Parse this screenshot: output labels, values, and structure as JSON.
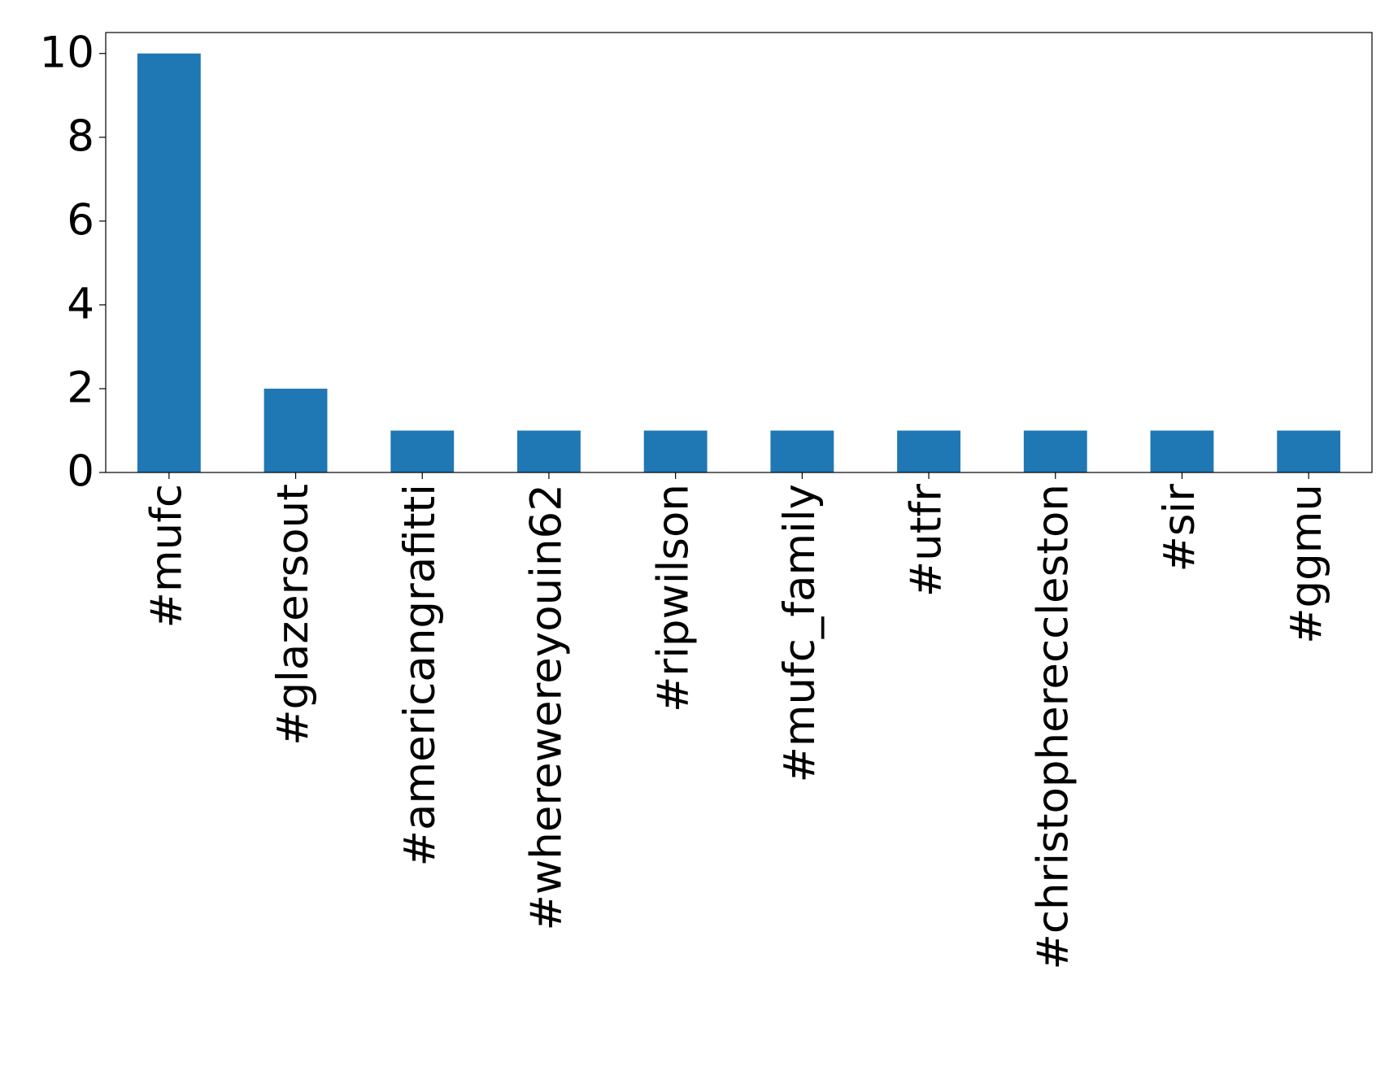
{
  "chart_data": {
    "type": "bar",
    "categories": [
      "#mufc",
      "#glazersout",
      "#americangrafitti",
      "#wherewereyouin62",
      "#ripwilson",
      "#mufc_family",
      "#utfr",
      "#christophereccleston",
      "#sir",
      "#ggmu"
    ],
    "values": [
      10,
      2,
      1,
      1,
      1,
      1,
      1,
      1,
      1,
      1
    ],
    "color": "#1f77b4",
    "ylim": [
      0,
      10.5
    ],
    "yticks": [
      0,
      2,
      4,
      6,
      8,
      10
    ],
    "grid": false
  }
}
